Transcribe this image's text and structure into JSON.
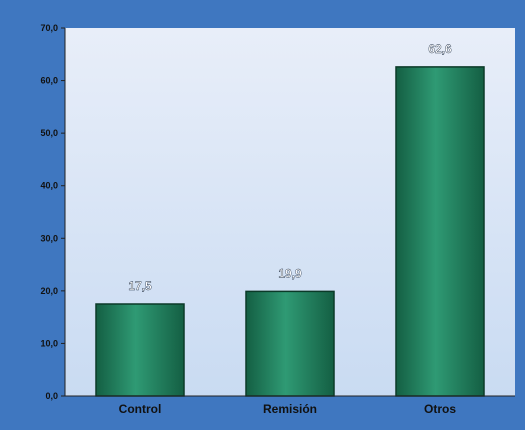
{
  "chart_data": {
    "type": "bar",
    "categories": [
      "Control",
      "Remisión",
      "Otros"
    ],
    "values": [
      17.5,
      19.9,
      62.6
    ],
    "value_labels": [
      "17,5",
      "19,9",
      "62,6"
    ],
    "y_ticks": [
      "0,0",
      "10,0",
      "20,0",
      "30,0",
      "40,0",
      "50,0",
      "60,0",
      "70,0"
    ],
    "ylim": [
      0,
      70
    ],
    "title": "",
    "xlabel": "",
    "ylabel": "",
    "grid": false,
    "legend": "none"
  },
  "colors": {
    "outer_background": "#3f77c0",
    "plot_background_top": "#e8eef9",
    "plot_background_bottom": "#c9dbf2",
    "bar_light": "#2f9a74",
    "bar_dark": "#145f43",
    "axis_text": "#111111",
    "value_text": "#ffffff"
  }
}
